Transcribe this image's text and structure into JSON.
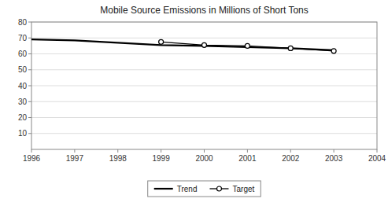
{
  "chart_data": {
    "type": "line",
    "title": "Mobile Source Emissions in Millions of Short Tons",
    "series": [
      {
        "name": "Trend",
        "color": "#000000",
        "marker": "none",
        "line_style": "solid",
        "x": [
          1996,
          1997,
          1998,
          1999,
          2000,
          2001,
          2002,
          2003
        ],
        "values": [
          69.1,
          68.5,
          67.0,
          65.5,
          65.0,
          64.2,
          63.5,
          62.3
        ]
      },
      {
        "name": "Target",
        "color": "#000000",
        "marker": "circle",
        "line_style": "solid",
        "x": [
          1999,
          2000,
          2001,
          2002,
          2003
        ],
        "values": [
          67.5,
          65.5,
          65.0,
          63.5,
          61.8
        ]
      }
    ],
    "xlim": [
      1996,
      2004
    ],
    "ylim": [
      0,
      80
    ],
    "xticks": [
      1996,
      1997,
      1998,
      1999,
      2000,
      2001,
      2002,
      2003,
      2004
    ],
    "yticks": [
      10,
      20,
      30,
      40,
      50,
      60,
      70,
      80
    ],
    "grid": "y",
    "legend": "bottom"
  }
}
